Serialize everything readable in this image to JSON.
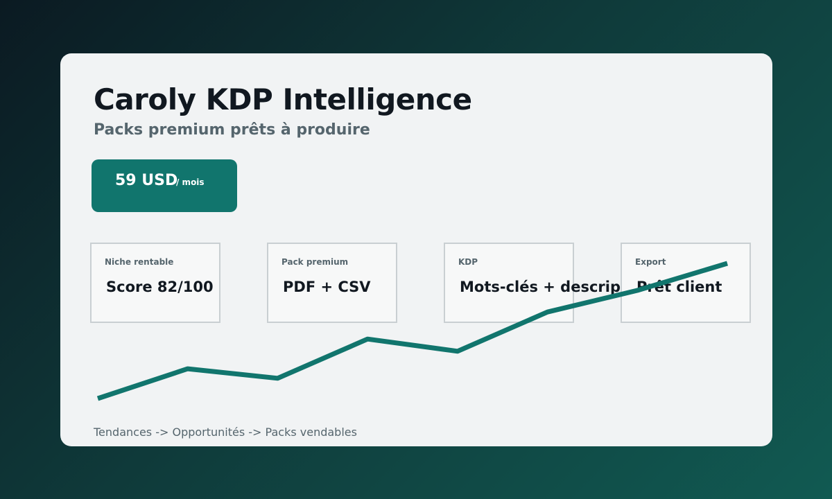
{
  "header": {
    "title": "Caroly KDP Intelligence",
    "subtitle": "Packs premium prêts à produire"
  },
  "pricing": {
    "amount": "59 USD",
    "period": "/ mois"
  },
  "features": [
    {
      "label": "Niche rentable",
      "value": "Score 82/100"
    },
    {
      "label": "Pack premium",
      "value": "PDF + CSV"
    },
    {
      "label": "KDP",
      "value": "Mots-clés + descript"
    },
    {
      "label": "Export",
      "value": "Prêt client"
    }
  ],
  "trend": {
    "values": [
      0,
      0.22,
      0.15,
      0.44,
      0.35,
      0.64,
      0.8,
      1.0
    ]
  },
  "footer": {
    "text": "Tendances -> Opportunités -> Packs vendables"
  },
  "colors": {
    "accent": "#11756d",
    "text_dark": "#111820",
    "text_muted": "#55656d",
    "card_bg": "#f1f3f4"
  }
}
